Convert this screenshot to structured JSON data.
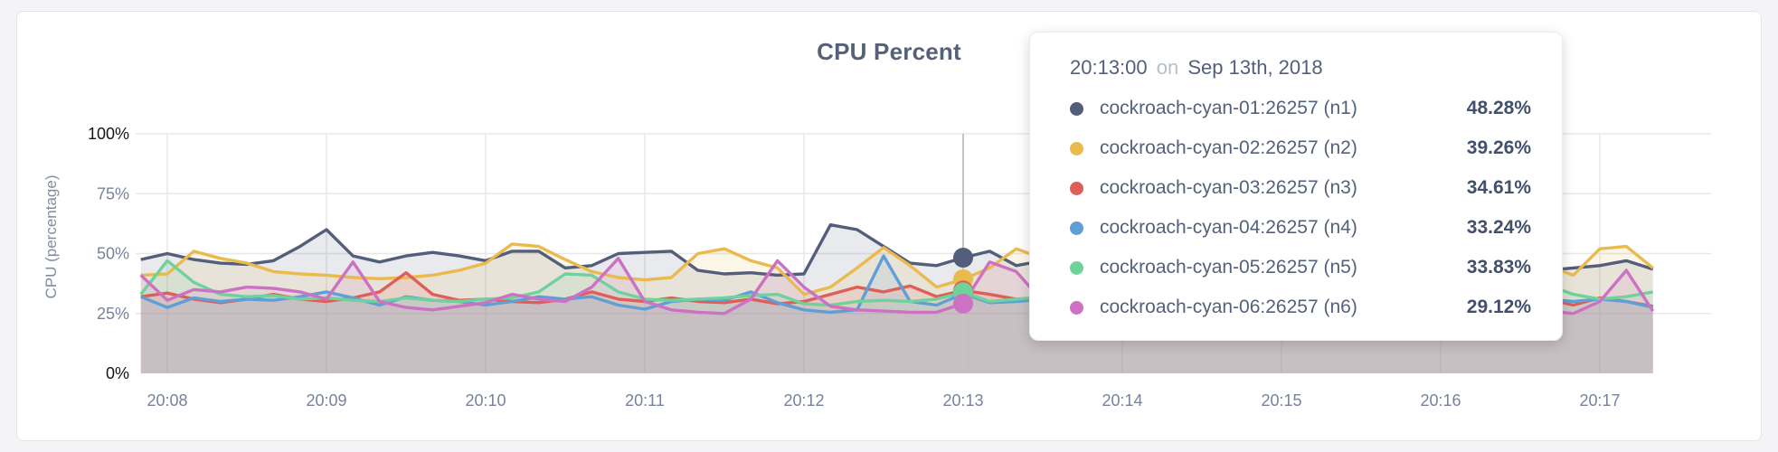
{
  "page": {
    "background": "#f4f4f6"
  },
  "card": {
    "title": "CPU Percent"
  },
  "y_axis": {
    "label": "CPU (percentage)"
  },
  "tooltip": {
    "time": "20:13:00",
    "conjunction": "on",
    "date": "Sep 13th, 2018",
    "rows": [
      {
        "label": "cockroach-cyan-01:26257 (n1)",
        "value": "48.28%",
        "color": "#535e7a"
      },
      {
        "label": "cockroach-cyan-02:26257 (n2)",
        "value": "39.26%",
        "color": "#eaba4d"
      },
      {
        "label": "cockroach-cyan-03:26257 (n3)",
        "value": "34.61%",
        "color": "#df5f58"
      },
      {
        "label": "cockroach-cyan-04:26257 (n4)",
        "value": "33.24%",
        "color": "#5f9fd6"
      },
      {
        "label": "cockroach-cyan-05:26257 (n5)",
        "value": "33.83%",
        "color": "#6fd29a"
      },
      {
        "label": "cockroach-cyan-06:26257 (n6)",
        "value": "29.12%",
        "color": "#cc71c3"
      }
    ]
  },
  "chart_data": {
    "type": "area",
    "title": "CPU Percent",
    "ylabel": "CPU (percentage)",
    "ylim": [
      0,
      100
    ],
    "grid": true,
    "legend_position": "tooltip",
    "y_ticks": [
      {
        "value": 0,
        "label": "0%",
        "emphasis": true
      },
      {
        "value": 25,
        "label": "25%",
        "emphasis": false
      },
      {
        "value": 50,
        "label": "50%",
        "emphasis": false
      },
      {
        "value": 75,
        "label": "75%",
        "emphasis": false
      },
      {
        "value": 100,
        "label": "100%",
        "emphasis": true
      }
    ],
    "x_ticks": [
      {
        "label": "20:08",
        "minute": 0
      },
      {
        "label": "20:09",
        "minute": 1
      },
      {
        "label": "20:10",
        "minute": 2
      },
      {
        "label": "20:11",
        "minute": 3
      },
      {
        "label": "20:12",
        "minute": 4
      },
      {
        "label": "20:13",
        "minute": 5
      },
      {
        "label": "20:14",
        "minute": 6
      },
      {
        "label": "20:15",
        "minute": 7
      },
      {
        "label": "20:16",
        "minute": 8
      },
      {
        "label": "20:17",
        "minute": 9
      }
    ],
    "x_start_time": "20:07:50",
    "x_step_seconds": 10,
    "hover": {
      "index": 31,
      "time": "20:13:00"
    },
    "series": [
      {
        "name": "cockroach-cyan-01:26257 (n1)",
        "color": "#535e7a",
        "hover_value": 48.28,
        "values": [
          47.5,
          50,
          47.5,
          46,
          45.5,
          47,
          53,
          60,
          49,
          46.5,
          49,
          50.5,
          49,
          47,
          51,
          51,
          44,
          45,
          50,
          50.5,
          51,
          43,
          41.5,
          42,
          41,
          41.5,
          62,
          60,
          53,
          46,
          45,
          48.28,
          51,
          45,
          47,
          48,
          45.5,
          47,
          49,
          46,
          44.5,
          47,
          48.5,
          45,
          46,
          47.5,
          44.5,
          46,
          48,
          45,
          46.5,
          44,
          45,
          43,
          44,
          45,
          47,
          43.5
        ]
      },
      {
        "name": "cockroach-cyan-02:26257 (n2)",
        "color": "#eaba4d",
        "hover_value": 39.26,
        "values": [
          41,
          41.5,
          51,
          48,
          46,
          42.5,
          41.5,
          41,
          40,
          39.5,
          40,
          41,
          43,
          46,
          54,
          53,
          47.5,
          42.5,
          40,
          39,
          40,
          50,
          52,
          47,
          44,
          33,
          36,
          44,
          52.5,
          45,
          36,
          39.26,
          44,
          52,
          48,
          44,
          41,
          46,
          50,
          46,
          42,
          44,
          48,
          52,
          47,
          43,
          40,
          44,
          47,
          43,
          41,
          45,
          48,
          45,
          41,
          52,
          53,
          44
        ]
      },
      {
        "name": "cockroach-cyan-03:26257 (n3)",
        "color": "#df5f58",
        "hover_value": 34.61,
        "values": [
          32,
          33.5,
          31,
          29.5,
          31,
          33,
          31,
          30,
          31.5,
          34,
          42,
          33,
          30.5,
          31,
          30,
          29.5,
          31,
          34,
          31,
          30,
          31.5,
          30,
          29.5,
          31,
          29,
          30,
          33,
          36,
          34,
          36.5,
          32,
          34.61,
          33,
          31,
          30,
          32,
          34,
          30.5,
          29,
          31,
          33,
          30,
          29.5,
          35,
          31,
          29,
          32,
          30.5,
          29,
          31,
          33,
          30,
          31.5,
          31,
          28.5,
          31.5,
          30,
          28
        ]
      },
      {
        "name": "cockroach-cyan-04:26257 (n4)",
        "color": "#5f9fd6",
        "hover_value": 33.24,
        "values": [
          32,
          27.5,
          31.5,
          30,
          31,
          30.5,
          32,
          34,
          31.5,
          28.5,
          32,
          30.5,
          30,
          28.5,
          30,
          32,
          31,
          32,
          28.5,
          26.8,
          30,
          31,
          30.5,
          34,
          29.5,
          26.5,
          25.5,
          26.5,
          49,
          30,
          28.5,
          33.24,
          29.5,
          30,
          31,
          29,
          30.5,
          32,
          29.5,
          28,
          30,
          31.5,
          29,
          30,
          32,
          30.5,
          29,
          31,
          30,
          28.5,
          31,
          30,
          29.5,
          31,
          30,
          31,
          30,
          27.5
        ]
      },
      {
        "name": "cockroach-cyan-05:26257 (n5)",
        "color": "#6fd29a",
        "hover_value": 33.83,
        "values": [
          33,
          47,
          38,
          33,
          32,
          32.5,
          31,
          31.5,
          30.5,
          30,
          31.5,
          30.5,
          30,
          31,
          31.5,
          34,
          41.5,
          41,
          34,
          31,
          30.5,
          31,
          31.5,
          32.5,
          33,
          29,
          28.5,
          30,
          30.5,
          30,
          31,
          33.83,
          30,
          31,
          32,
          30.5,
          31.5,
          33,
          30,
          31,
          32.5,
          30.5,
          31,
          33.5,
          31,
          30,
          32,
          31.5,
          30,
          32,
          31,
          33,
          35,
          37,
          33,
          31,
          32,
          34
        ]
      },
      {
        "name": "cockroach-cyan-06:26257 (n6)",
        "color": "#cc71c3",
        "hover_value": 29.12,
        "values": [
          41,
          30.5,
          35,
          34,
          36,
          35.5,
          34,
          31,
          46.5,
          30,
          27.5,
          26.5,
          28,
          29.5,
          33,
          31,
          30,
          36,
          48,
          30,
          26.5,
          25.5,
          25,
          31,
          47,
          36,
          28,
          26.5,
          26,
          25.5,
          25.5,
          29.12,
          46.5,
          42.5,
          30,
          26,
          28,
          34,
          27,
          25.5,
          30,
          38,
          28,
          26,
          32,
          27,
          25.5,
          31,
          36,
          27,
          25,
          29,
          26,
          26,
          25,
          30,
          43,
          26
        ]
      }
    ]
  }
}
